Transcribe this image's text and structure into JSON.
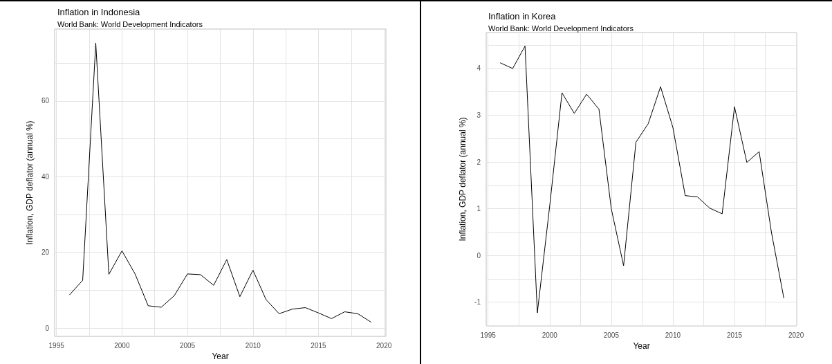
{
  "chart_data": [
    {
      "type": "line",
      "title": "Inflation in Indonesia",
      "subtitle": "World Bank: World Development Indicators",
      "xlabel": "Year",
      "ylabel": "Inflation, GDP deflator (annual %)",
      "x": [
        1996,
        1997,
        1998,
        1999,
        2000,
        2001,
        2002,
        2003,
        2004,
        2005,
        2006,
        2007,
        2008,
        2009,
        2010,
        2011,
        2012,
        2013,
        2014,
        2015,
        2016,
        2017,
        2018,
        2019
      ],
      "series": [
        {
          "color": "#000000",
          "values": [
            8.8,
            12.6,
            75.3,
            14.2,
            20.4,
            14.3,
            5.9,
            5.5,
            8.6,
            14.3,
            14.1,
            11.3,
            18.1,
            8.3,
            15.3,
            7.5,
            3.8,
            5.0,
            5.4,
            4.0,
            2.5,
            4.3,
            3.8,
            1.6
          ]
        }
      ],
      "xlim": [
        1994.86,
        2020.15
      ],
      "xticks": [
        1995,
        {
          "value": 1997.5,
          "label": null
        },
        2000,
        {
          "value": 2002.5,
          "label": null
        },
        2005,
        {
          "value": 2007.5,
          "label": null
        },
        2010,
        {
          "value": 2012.5,
          "label": null
        },
        2015,
        {
          "value": 2017.5,
          "label": null
        },
        2020
      ],
      "ylim": [
        -2.2,
        79
      ],
      "yticks": [
        0,
        {
          "value": 10,
          "label": null
        },
        20,
        {
          "value": 30,
          "label": null
        },
        40,
        {
          "value": 50,
          "label": null
        },
        60,
        {
          "value": 70,
          "label": null
        }
      ],
      "grid": true,
      "marker": "none",
      "line_style": "solid"
    },
    {
      "type": "line",
      "title": "Inflation in Korea",
      "subtitle": "World Bank: World Development Indicators",
      "xlabel": "Year",
      "ylabel": "Inflation, GDP deflator (annual %)",
      "x": [
        1996,
        1997,
        1998,
        1999,
        2000,
        2001,
        2002,
        2003,
        2004,
        2005,
        2006,
        2007,
        2008,
        2009,
        2010,
        2011,
        2012,
        2013,
        2014,
        2015,
        2016,
        2017,
        2018,
        2019
      ],
      "series": [
        {
          "color": "#000000",
          "values": [
            4.12,
            4.0,
            4.48,
            -1.23,
            1.05,
            3.48,
            3.04,
            3.45,
            3.13,
            1.0,
            -0.22,
            2.42,
            2.82,
            3.61,
            2.74,
            1.28,
            1.25,
            1.01,
            0.89,
            3.18,
            1.99,
            2.22,
            0.49,
            -0.91
          ]
        }
      ],
      "xlim": [
        1994.85,
        2020.05
      ],
      "xticks": [
        1995,
        {
          "value": 1997.5,
          "label": null
        },
        2000,
        {
          "value": 2002.5,
          "label": null
        },
        2005,
        {
          "value": 2007.5,
          "label": null
        },
        2010,
        {
          "value": 2012.5,
          "label": null
        },
        2015,
        {
          "value": 2017.5,
          "label": null
        },
        2020
      ],
      "ylim": [
        -1.51,
        4.77
      ],
      "yticks": [
        {
          "value": -1.5,
          "label": null
        },
        -1,
        {
          "value": -0.5,
          "label": null
        },
        0,
        {
          "value": 0.5,
          "label": null
        },
        1,
        {
          "value": 1.5,
          "label": null
        },
        2,
        {
          "value": 2.5,
          "label": null
        },
        3,
        {
          "value": 3.5,
          "label": null
        },
        4,
        {
          "value": 4.5,
          "label": null
        }
      ],
      "grid": true,
      "marker": "none",
      "line_style": "solid"
    }
  ]
}
